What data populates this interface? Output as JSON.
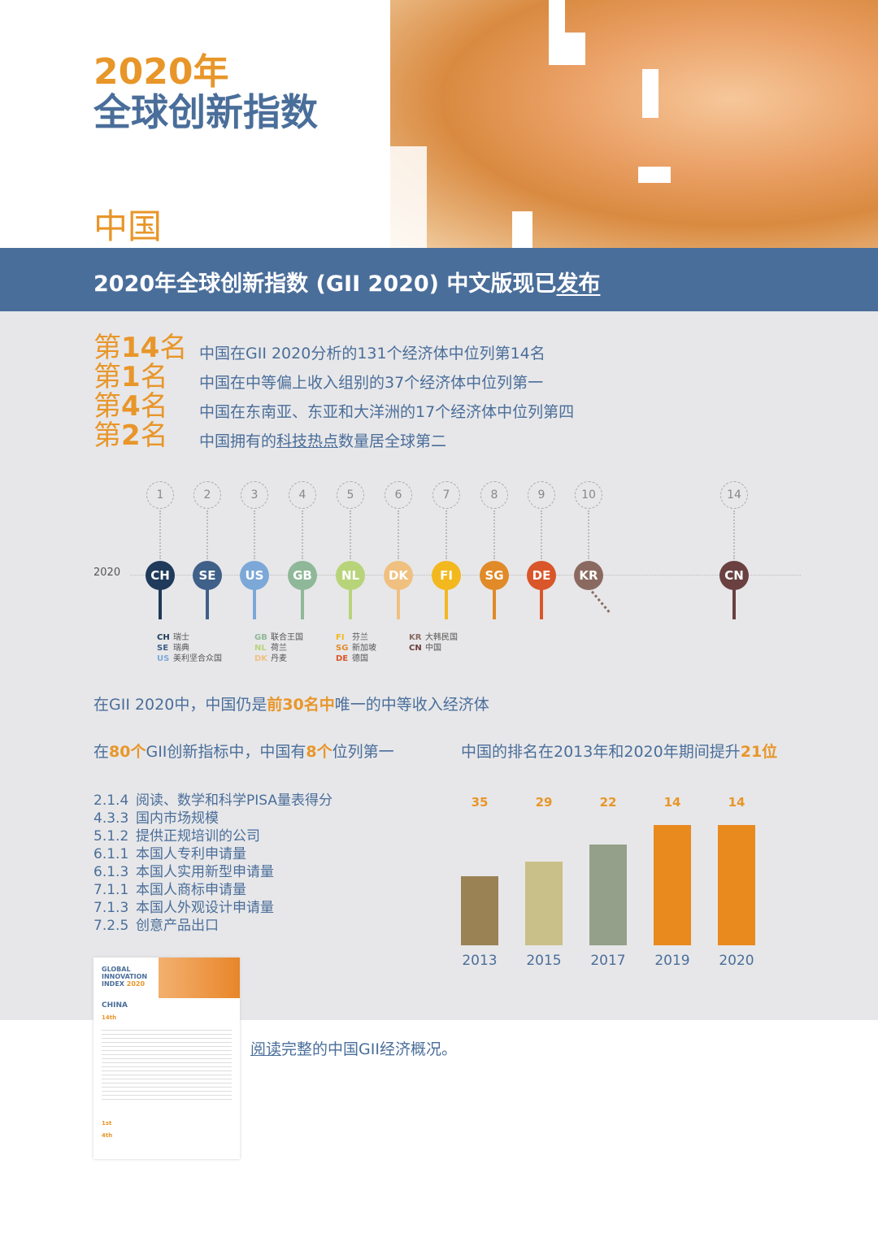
{
  "header": {
    "year_title": "2020年",
    "title": "全球创新指数",
    "country": "中国"
  },
  "banner": {
    "text_main": "2020年全球创新指数 (GII 2020) 中文版现已",
    "text_link": "发布"
  },
  "rankings": [
    {
      "rank": "第14名",
      "desc": "中国在GII 2020分析的131个经济体中位列第14名"
    },
    {
      "rank": "第1名",
      "desc": "中国在中等偏上收入组别的37个经济体中位列第一"
    },
    {
      "rank": "第4名",
      "desc": "中国在东南亚、东亚和大洋洲的17个经济体中位列第四"
    },
    {
      "rank": "第2名",
      "desc_pre": "中国拥有的",
      "desc_link": "科技热点",
      "desc_post": "数量居全球第二"
    }
  ],
  "timeline": {
    "year": "2020",
    "items": [
      {
        "rank": "1",
        "code": "CH",
        "name": "瑞士",
        "color": "#1f3a5a"
      },
      {
        "rank": "2",
        "code": "SE",
        "name": "瑞典",
        "color": "#3f6088"
      },
      {
        "rank": "3",
        "code": "US",
        "name": "美利坚合众国",
        "color": "#7ca8d8"
      },
      {
        "rank": "4",
        "code": "GB",
        "name": "联合王国",
        "color": "#8fb898"
      },
      {
        "rank": "5",
        "code": "NL",
        "name": "荷兰",
        "color": "#b8d47a"
      },
      {
        "rank": "6",
        "code": "DK",
        "name": "丹麦",
        "color": "#f0c080"
      },
      {
        "rank": "7",
        "code": "FI",
        "name": "芬兰",
        "color": "#f2b81e"
      },
      {
        "rank": "8",
        "code": "SG",
        "name": "新加坡",
        "color": "#e08a28"
      },
      {
        "rank": "9",
        "code": "DE",
        "name": "德国",
        "color": "#d9562a"
      },
      {
        "rank": "10",
        "code": "KR",
        "name": "大韩民国",
        "color": "#8a6a60"
      },
      {
        "rank": "14",
        "code": "CN",
        "name": "中国",
        "color": "#6a4040"
      }
    ]
  },
  "statement1": {
    "pre": "在GII 2020中，中国仍是",
    "hl": "前30名中",
    "post": "唯一的中等收入经济体"
  },
  "statement2": {
    "pre": "在",
    "hl1": "80个",
    "mid": "GII创新指标中，中国有",
    "hl2": "8个",
    "post": "位列第一"
  },
  "indicators": [
    {
      "code": "2.1.4",
      "label": "阅读、数学和科学PISA量表得分"
    },
    {
      "code": "4.3.3",
      "label": "国内市场规模"
    },
    {
      "code": "5.1.2",
      "label": "提供正规培训的公司"
    },
    {
      "code": "6.1.1",
      "label": "本国人专利申请量"
    },
    {
      "code": "6.1.3",
      "label": "本国人实用新型申请量"
    },
    {
      "code": "7.1.1",
      "label": "本国人商标申请量"
    },
    {
      "code": "7.1.3",
      "label": "本国人外观设计申请量"
    },
    {
      "code": "7.2.5",
      "label": "创意产品出口"
    }
  ],
  "chart_data": {
    "type": "bar",
    "title_pre": "中国的排名在2013年和2020年期间提升",
    "title_hl": "21位",
    "categories": [
      "2013",
      "2015",
      "2017",
      "2019",
      "2020"
    ],
    "values": [
      35,
      29,
      22,
      14,
      14
    ],
    "colors": [
      "#9a8255",
      "#c8c088",
      "#94a08a",
      "#e88a1e",
      "#e88a1e"
    ]
  },
  "thumbnail": {
    "title": "GLOBAL INNOVATION INDEX",
    "year": "2020",
    "country": "CHINA",
    "r1": "14th",
    "r2": "1st",
    "r3": "4th"
  },
  "footer": {
    "link": "阅读",
    "text": "完整的中国GII经济概况。"
  }
}
